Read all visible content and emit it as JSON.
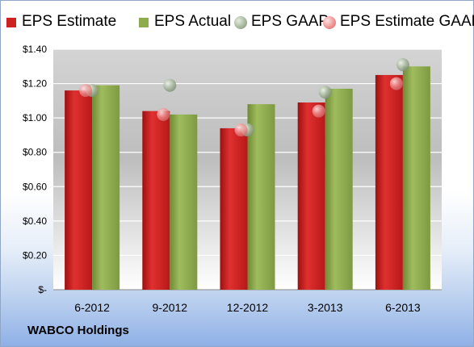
{
  "chart_data": {
    "type": "bar",
    "categories": [
      "6-2012",
      "9-2012",
      "12-2012",
      "3-2013",
      "6-2013"
    ],
    "series": [
      {
        "name": "EPS Estimate",
        "kind": "bar",
        "color": "#cc2222",
        "values": [
          1.16,
          1.04,
          0.94,
          1.09,
          1.25
        ]
      },
      {
        "name": "EPS Actual",
        "kind": "bar",
        "color": "#8eab4e",
        "values": [
          1.19,
          1.02,
          1.08,
          1.17,
          1.3
        ]
      },
      {
        "name": "EPS GAAP",
        "kind": "marker",
        "color": "#a3b49a",
        "values": [
          1.16,
          1.19,
          0.93,
          1.15,
          1.31
        ]
      },
      {
        "name": "EPS Estimate GAAP",
        "kind": "marker",
        "color": "#ee8e8e",
        "values": [
          1.16,
          1.02,
          0.93,
          1.04,
          1.2
        ]
      }
    ],
    "ylim": [
      0,
      1.4
    ],
    "yticks": [
      0,
      0.2,
      0.4,
      0.6,
      0.8,
      1.0,
      1.2,
      1.4
    ],
    "ytick_labels": [
      "$-",
      "$0.20",
      "$0.40",
      "$0.60",
      "$0.80",
      "$1.00",
      "$1.20",
      "$1.40"
    ],
    "grid": true,
    "legend_position": "top"
  },
  "footer": {
    "company": "WABCO Holdings"
  }
}
